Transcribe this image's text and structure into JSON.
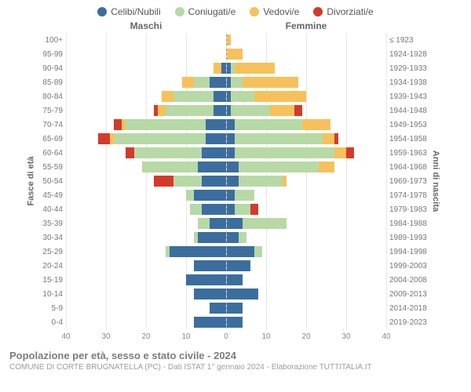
{
  "legend": {
    "items": [
      {
        "label": "Celibi/Nubili",
        "color": "#3b6e9e"
      },
      {
        "label": "Coniugati/e",
        "color": "#b7d9a6"
      },
      {
        "label": "Vedovi/e",
        "color": "#f6c15b"
      },
      {
        "label": "Divorziati/e",
        "color": "#d43a2a"
      }
    ]
  },
  "headers": {
    "male": "Maschi",
    "female": "Femmine"
  },
  "axis_titles": {
    "left": "Fasce di età",
    "right": "Anni di nascita"
  },
  "x_axis": {
    "max": 40,
    "ticks": [
      40,
      30,
      20,
      10,
      0,
      10,
      20,
      30,
      40
    ]
  },
  "colors": {
    "celibi": "#3b6e9e",
    "coniugati": "#b7d9a6",
    "vedovi": "#f6c15b",
    "divorziati": "#d43a2a",
    "grid": "#e6e6e6",
    "centerline": "#999999",
    "bg": "#ffffff"
  },
  "rows": [
    {
      "age": "100+",
      "year": "≤ 1923",
      "m": {
        "cel": 0,
        "con": 0,
        "ved": 0,
        "div": 0
      },
      "f": {
        "cel": 0,
        "con": 0,
        "ved": 1,
        "div": 0
      }
    },
    {
      "age": "95-99",
      "year": "1924-1928",
      "m": {
        "cel": 0,
        "con": 0,
        "ved": 0,
        "div": 0
      },
      "f": {
        "cel": 0,
        "con": 0,
        "ved": 4,
        "div": 0
      }
    },
    {
      "age": "90-94",
      "year": "1929-1933",
      "m": {
        "cel": 1,
        "con": 0,
        "ved": 2,
        "div": 0
      },
      "f": {
        "cel": 1,
        "con": 1,
        "ved": 10,
        "div": 0
      }
    },
    {
      "age": "85-89",
      "year": "1934-1938",
      "m": {
        "cel": 4,
        "con": 4,
        "ved": 3,
        "div": 0
      },
      "f": {
        "cel": 1,
        "con": 3,
        "ved": 14,
        "div": 0
      }
    },
    {
      "age": "80-84",
      "year": "1939-1943",
      "m": {
        "cel": 3,
        "con": 10,
        "ved": 3,
        "div": 0
      },
      "f": {
        "cel": 1,
        "con": 6,
        "ved": 13,
        "div": 0
      }
    },
    {
      "age": "75-79",
      "year": "1944-1948",
      "m": {
        "cel": 3,
        "con": 12,
        "ved": 2,
        "div": 1
      },
      "f": {
        "cel": 1,
        "con": 10,
        "ved": 6,
        "div": 2
      }
    },
    {
      "age": "70-74",
      "year": "1949-1953",
      "m": {
        "cel": 5,
        "con": 20,
        "ved": 1,
        "div": 2
      },
      "f": {
        "cel": 2,
        "con": 17,
        "ved": 7,
        "div": 0
      }
    },
    {
      "age": "65-69",
      "year": "1954-1958",
      "m": {
        "cel": 5,
        "con": 23,
        "ved": 1,
        "div": 3
      },
      "f": {
        "cel": 2,
        "con": 22,
        "ved": 3,
        "div": 1
      }
    },
    {
      "age": "60-64",
      "year": "1959-1963",
      "m": {
        "cel": 6,
        "con": 17,
        "ved": 0,
        "div": 2
      },
      "f": {
        "cel": 2,
        "con": 25,
        "ved": 3,
        "div": 2
      }
    },
    {
      "age": "55-59",
      "year": "1964-1968",
      "m": {
        "cel": 7,
        "con": 14,
        "ved": 0,
        "div": 0
      },
      "f": {
        "cel": 3,
        "con": 20,
        "ved": 4,
        "div": 0
      }
    },
    {
      "age": "50-54",
      "year": "1969-1973",
      "m": {
        "cel": 6,
        "con": 7,
        "ved": 0,
        "div": 5
      },
      "f": {
        "cel": 3,
        "con": 11,
        "ved": 1,
        "div": 0
      }
    },
    {
      "age": "45-49",
      "year": "1974-1978",
      "m": {
        "cel": 8,
        "con": 2,
        "ved": 0,
        "div": 0
      },
      "f": {
        "cel": 2,
        "con": 5,
        "ved": 0,
        "div": 0
      }
    },
    {
      "age": "40-44",
      "year": "1979-1983",
      "m": {
        "cel": 6,
        "con": 3,
        "ved": 0,
        "div": 0
      },
      "f": {
        "cel": 2,
        "con": 4,
        "ved": 0,
        "div": 2
      }
    },
    {
      "age": "35-39",
      "year": "1984-1988",
      "m": {
        "cel": 4,
        "con": 3,
        "ved": 0,
        "div": 0
      },
      "f": {
        "cel": 4,
        "con": 11,
        "ved": 0,
        "div": 0
      }
    },
    {
      "age": "30-34",
      "year": "1989-1993",
      "m": {
        "cel": 7,
        "con": 1,
        "ved": 0,
        "div": 0
      },
      "f": {
        "cel": 3,
        "con": 2,
        "ved": 0,
        "div": 0
      }
    },
    {
      "age": "25-29",
      "year": "1994-1998",
      "m": {
        "cel": 14,
        "con": 1,
        "ved": 0,
        "div": 0
      },
      "f": {
        "cel": 7,
        "con": 2,
        "ved": 0,
        "div": 0
      }
    },
    {
      "age": "20-24",
      "year": "1999-2003",
      "m": {
        "cel": 8,
        "con": 0,
        "ved": 0,
        "div": 0
      },
      "f": {
        "cel": 6,
        "con": 0,
        "ved": 0,
        "div": 0
      }
    },
    {
      "age": "15-19",
      "year": "2004-2008",
      "m": {
        "cel": 10,
        "con": 0,
        "ved": 0,
        "div": 0
      },
      "f": {
        "cel": 4,
        "con": 0,
        "ved": 0,
        "div": 0
      }
    },
    {
      "age": "10-14",
      "year": "2009-2013",
      "m": {
        "cel": 8,
        "con": 0,
        "ved": 0,
        "div": 0
      },
      "f": {
        "cel": 8,
        "con": 0,
        "ved": 0,
        "div": 0
      }
    },
    {
      "age": "5-9",
      "year": "2014-2018",
      "m": {
        "cel": 4,
        "con": 0,
        "ved": 0,
        "div": 0
      },
      "f": {
        "cel": 4,
        "con": 0,
        "ved": 0,
        "div": 0
      }
    },
    {
      "age": "0-4",
      "year": "2019-2023",
      "m": {
        "cel": 8,
        "con": 0,
        "ved": 0,
        "div": 0
      },
      "f": {
        "cel": 4,
        "con": 0,
        "ved": 0,
        "div": 0
      }
    }
  ],
  "footer": {
    "title": "Popolazione per età, sesso e stato civile - 2024",
    "sub": "COMUNE DI CORTE BRUGNATELLA (PC) - Dati ISTAT 1° gennaio 2024 - Elaborazione TUTTITALIA.IT"
  }
}
